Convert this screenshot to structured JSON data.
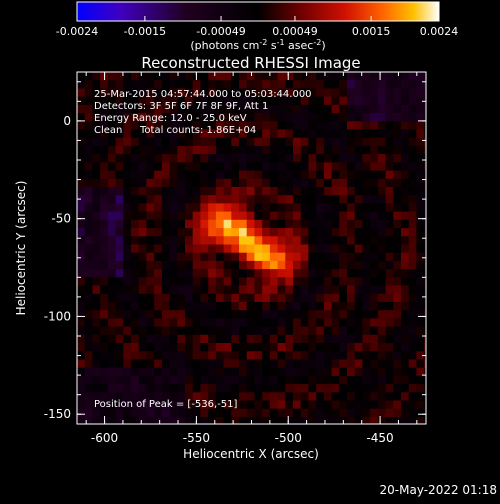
{
  "chart_data": {
    "type": "heatmap",
    "title": "Reconstructed RHESSI Image",
    "xlabel": "Heliocentric X (arcsec)",
    "ylabel": "Heliocentric Y (arcsec)",
    "xlim": [
      -615,
      -425
    ],
    "ylim": [
      -155,
      25
    ],
    "x_ticks": [
      "-600",
      "-550",
      "-500",
      "-450"
    ],
    "x_tick_values": [
      -600,
      -550,
      -500,
      -450
    ],
    "y_ticks": [
      "0",
      "-50",
      "-100",
      "-150"
    ],
    "y_tick_values": [
      0,
      -50,
      -100,
      -150
    ],
    "colorbar": {
      "tick_labels": [
        "-0.0024",
        "-0.0015",
        "-0.00049",
        "0.00049",
        "0.0015",
        "0.0024"
      ],
      "tick_values": [
        -0.0024,
        -0.0015,
        -0.00049,
        0.00049,
        0.0015,
        0.0024
      ],
      "range": [
        -0.0024,
        0.0024
      ],
      "unit_prefix": "(photons cm",
      "unit_exp1": "-2",
      "unit_mid1": " s",
      "unit_exp2": "-1",
      "unit_mid2": " asec",
      "unit_exp3": "-2",
      "unit_suffix": ")",
      "colors": [
        "#0000ff",
        "#3300aa",
        "#1a0010",
        "#000000",
        "#600000",
        "#c00000",
        "#ff4000",
        "#ffa000",
        "#ffff80",
        "#ffffff"
      ]
    },
    "annotations": {
      "time_range": "25-Mar-2015 04:57:44.000 to 05:03:44.000",
      "detectors": "Detectors: 3F 5F 6F 7F 8F 9F, Att 1",
      "energy": "Energy Range: 12.0 - 25.0 keV",
      "method": "Clean",
      "total_counts": "Total counts: 1.86E+04",
      "peak": "Position of Peak = [-536,-51]"
    },
    "peak": {
      "x": -536,
      "y": -51
    },
    "sources": [
      {
        "x": -536,
        "y": -51,
        "sx": 9,
        "sy": 7,
        "amp": 0.00205
      },
      {
        "x": -512,
        "y": -68,
        "sx": 9,
        "sy": 7,
        "amp": 0.0018
      },
      {
        "x": -524,
        "y": -60,
        "sx": 14,
        "sy": 10,
        "amp": 0.0008
      }
    ],
    "pixel_size": 4.2
  },
  "timestamp": "20-May-2022 01:18"
}
